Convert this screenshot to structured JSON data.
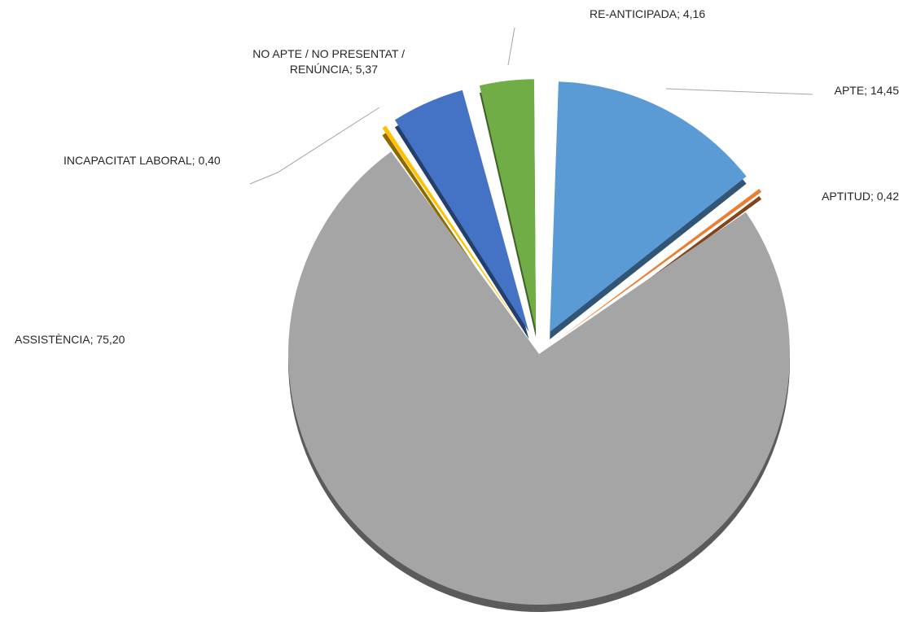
{
  "chart_data": {
    "type": "pie",
    "title": "",
    "slices": [
      {
        "label": "APTE; 14,45",
        "value": 14.45,
        "color": "#5B9BD5"
      },
      {
        "label": "APTITUD; 0,42",
        "value": 0.42,
        "color": "#ED7D31"
      },
      {
        "label": "ASSISTÈNCIA; 75,20",
        "value": 75.2,
        "color": "#A5A5A5"
      },
      {
        "label": "INCAPACITAT LABORAL; 0,40",
        "value": 0.4,
        "color": "#FFC000"
      },
      {
        "label": "NO APTE / NO PRESENTAT / RENÚNCIA; 5,37",
        "value": 5.37,
        "color": "#4472C4"
      },
      {
        "label": "RE-ANTICIPADA; 4,16",
        "value": 4.16,
        "color": "#70AD47"
      }
    ],
    "legend": "none",
    "data_labels": "outside-with-leader-lines",
    "style": "exploded-3d"
  }
}
